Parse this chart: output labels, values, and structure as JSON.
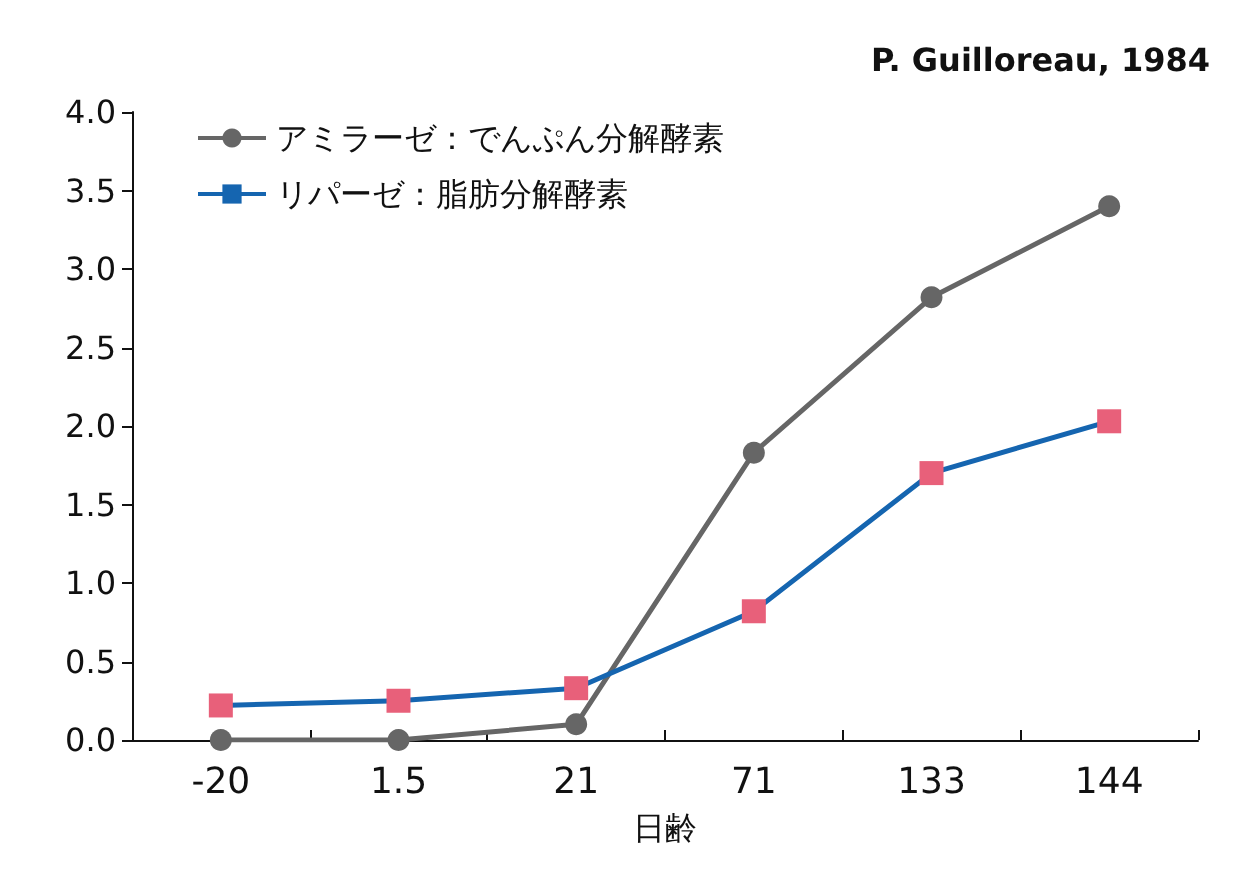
{
  "chart_data": {
    "type": "line",
    "annotations": [
      "P. Guilloreau, 1984"
    ],
    "xlabel": "日齢",
    "categories": [
      "-20",
      "1.5",
      "21",
      "71",
      "133",
      "144"
    ],
    "series": [
      {
        "name": "アミラーゼ：でんぷん分解酵素",
        "color": "#666666",
        "marker": "circle",
        "values": [
          0,
          0,
          0.1,
          1.83,
          2.82,
          3.4
        ]
      },
      {
        "name": "リパーゼ：脂肪分解酵素",
        "color": "#1565b0",
        "marker": "square",
        "colors": [
          "#e8607a",
          "#e8607a",
          "#e8607a",
          "#e8607a",
          "#e8607a",
          "#e8607a"
        ],
        "values": [
          0.22,
          0.25,
          0.33,
          0.82,
          1.7,
          2.03
        ]
      }
    ],
    "ylim": [
      0,
      4
    ],
    "yticks": [
      {
        "value": 0,
        "label": "0.0"
      },
      0.5,
      {
        "value": 1,
        "label": "1.0"
      },
      1.5,
      {
        "value": 2,
        "label": "2.0"
      },
      2.5,
      {
        "value": 3,
        "label": "3.0"
      },
      3.5,
      {
        "value": 4,
        "label": "4.0"
      }
    ],
    "grid": false,
    "legend": "top left"
  }
}
